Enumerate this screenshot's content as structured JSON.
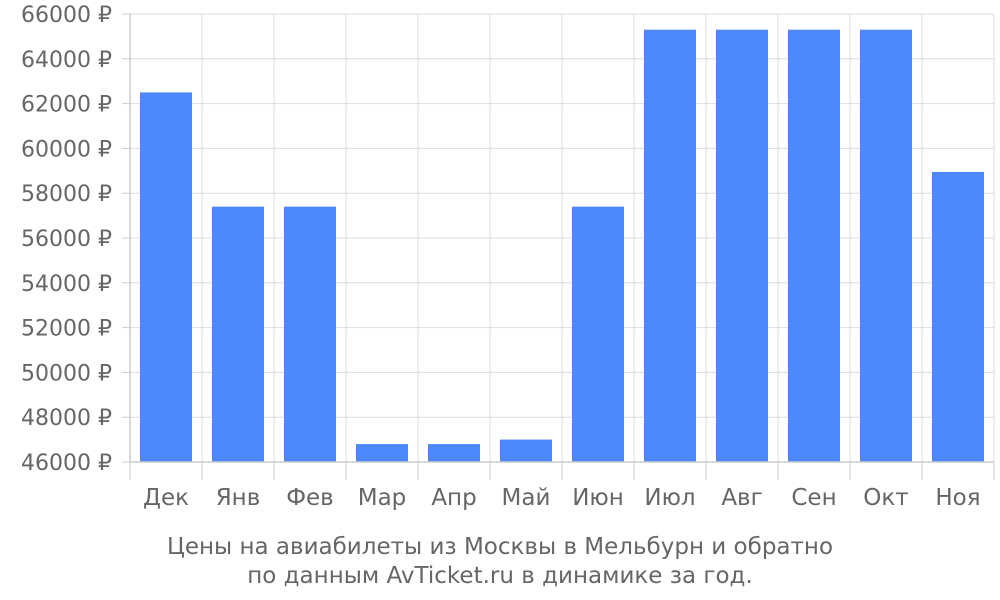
{
  "chart_data": {
    "type": "bar",
    "categories": [
      "Дек",
      "Янв",
      "Фев",
      "Мар",
      "Апр",
      "Май",
      "Июн",
      "Июл",
      "Авг",
      "Сен",
      "Окт",
      "Ноя"
    ],
    "values": [
      62500,
      57400,
      57400,
      46800,
      46800,
      47000,
      57400,
      65300,
      65300,
      65300,
      65300,
      58950
    ],
    "ylim": [
      46000,
      66000
    ],
    "y_ticks": [
      46000,
      48000,
      50000,
      52000,
      54000,
      56000,
      58000,
      60000,
      62000,
      64000,
      66000
    ],
    "y_tick_labels": [
      "46000 ₽",
      "48000 ₽",
      "50000 ₽",
      "52000 ₽",
      "54000 ₽",
      "56000 ₽",
      "58000 ₽",
      "60000 ₽",
      "62000 ₽",
      "64000 ₽",
      "66000 ₽"
    ],
    "grid": true,
    "bar_color": "#4d88fa",
    "caption_line1": "Цены на авиабилеты из Москвы в Мельбурн и обратно",
    "caption_line2": "по данным AvTicket.ru в динамике за год."
  }
}
